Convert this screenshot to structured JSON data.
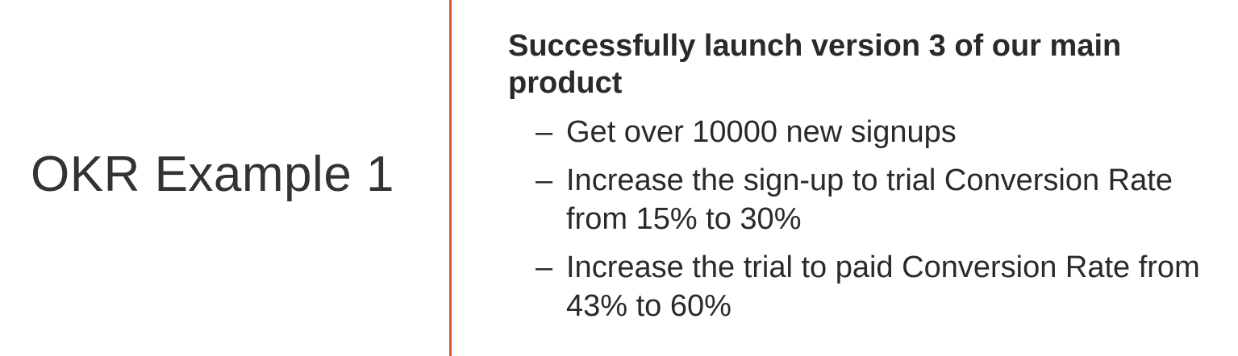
{
  "slide": {
    "title": "OKR Example 1",
    "objective": "Successfully launch version 3 of our main product",
    "key_results": [
      "Get over 10000 new signups",
      "Increase the sign-up to trial Conversion Rate from 15% to 30%",
      "Increase the trial to paid Conversion Rate from 43% to 60%"
    ],
    "bullet_symbol": "–",
    "accent_color": "#d8572a"
  }
}
